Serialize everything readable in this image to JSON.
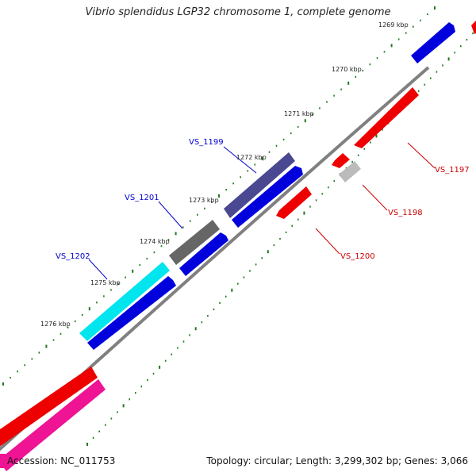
{
  "title": "Vibrio splendidus LGP32 chromosome 1, complete genome",
  "accession": "Accession: NC_011753",
  "summary": "Topology: circular; Length: 3,299,302 bp; Genes: 3,066",
  "kbp_labels": [
    "1269 kbp",
    "1270 kbp",
    "1271 kbp",
    "1272 kbp",
    "1273 kbp",
    "1274 kbp",
    "1275 kbp",
    "1276 kbp"
  ],
  "genes": [
    {
      "name": "VS_1199",
      "strand": "forward",
      "label_color": "#0000cc"
    },
    {
      "name": "VS_1201",
      "strand": "forward",
      "label_color": "#0000cc"
    },
    {
      "name": "VS_1202",
      "strand": "forward",
      "label_color": "#0000cc"
    },
    {
      "name": "VS_1197",
      "strand": "reverse",
      "label_color": "#cc0000"
    },
    {
      "name": "VS_1198",
      "strand": "reverse",
      "label_color": "#cc0000"
    },
    {
      "name": "VS_1200",
      "strand": "reverse",
      "label_color": "#cc0000"
    }
  ],
  "colors": {
    "backbone": "#808080",
    "tick": "#1e7a1e",
    "forward_cds": "#0000dd",
    "reverse_cds": "#ee0000",
    "cyan": "#00e5ee",
    "slate": "#4a4890",
    "gray": "#666666",
    "light_gray": "#bbbbbb",
    "pink": "#ee1493"
  }
}
